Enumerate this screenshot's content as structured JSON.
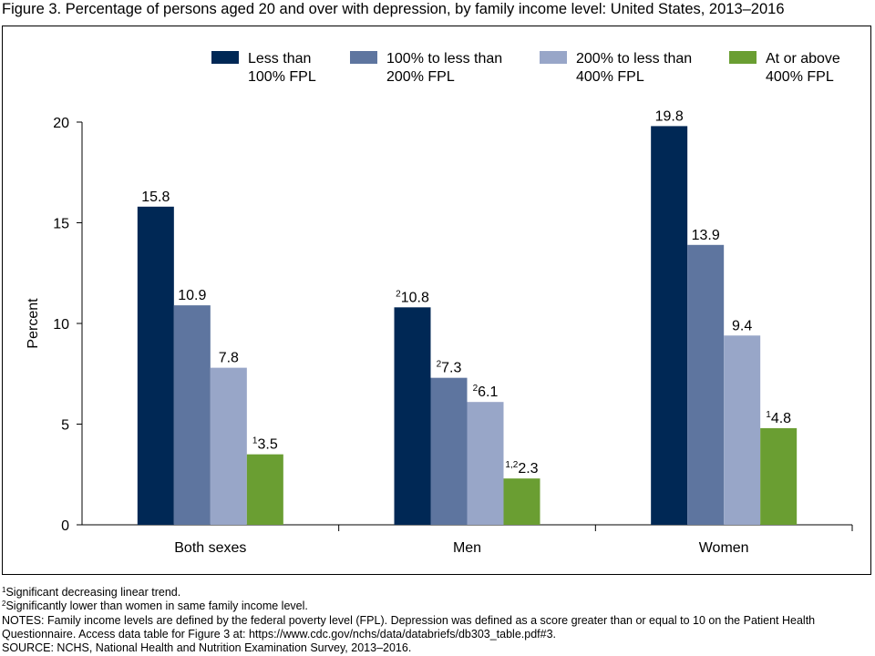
{
  "figure": {
    "title": "Figure 3. Percentage of persons aged 20 and over with depression, by family income level: United States, 2013–2016"
  },
  "chart_data": {
    "type": "bar",
    "title": "Figure 3. Percentage of persons aged 20 and over with depression, by family income level: United States, 2013–2016",
    "xlabel": "",
    "ylabel": "Percent",
    "ylim": [
      0,
      20
    ],
    "yticks": [
      0,
      5,
      10,
      15,
      20
    ],
    "grid": false,
    "legend_position": "top",
    "categories": [
      "Both sexes",
      "Men",
      "Women"
    ],
    "series": [
      {
        "name": "Less than 100% FPL",
        "legend_lines": [
          "Less than",
          "100% FPL"
        ],
        "color": "#002855",
        "values": [
          15.8,
          10.8,
          19.8
        ],
        "labels": [
          "15.8",
          "10.8",
          "19.8"
        ],
        "superscripts": [
          "",
          "2",
          ""
        ]
      },
      {
        "name": "100% to less than 200% FPL",
        "legend_lines": [
          "100% to less than",
          "200% FPL"
        ],
        "color": "#5e759f",
        "values": [
          10.9,
          7.3,
          13.9
        ],
        "labels": [
          "10.9",
          "7.3",
          "13.9"
        ],
        "superscripts": [
          "",
          "2",
          ""
        ]
      },
      {
        "name": "200% to less than 400% FPL",
        "legend_lines": [
          "200% to less than",
          "400% FPL"
        ],
        "color": "#98a6c8",
        "values": [
          7.8,
          6.1,
          9.4
        ],
        "labels": [
          "7.8",
          "6.1",
          "9.4"
        ],
        "superscripts": [
          "",
          "2",
          ""
        ]
      },
      {
        "name": "At or above 400% FPL",
        "legend_lines": [
          "At or above",
          "400% FPL"
        ],
        "color": "#6a9e32",
        "values": [
          3.5,
          2.3,
          4.8
        ],
        "labels": [
          "3.5",
          "2.3",
          "4.8"
        ],
        "superscripts": [
          "1",
          "1,2",
          "1"
        ]
      }
    ]
  },
  "footnotes": [
    {
      "marker": "1",
      "text": "Significant decreasing linear trend."
    },
    {
      "marker": "2",
      "text": "Significantly lower than women in same family income level."
    }
  ],
  "notes": {
    "line1": "NOTES: Family income levels are defined by the federal poverty level (FPL). Depression was defined as a score greater than or equal to 10 on the Patient Health",
    "line2": "Questionnaire. Access data table for Figure 3 at: https://www.cdc.gov/nchs/data/databriefs/db303_table.pdf#3.",
    "source": "SOURCE: NCHS, National Health and Nutrition Examination Survey, 2013–2016."
  }
}
